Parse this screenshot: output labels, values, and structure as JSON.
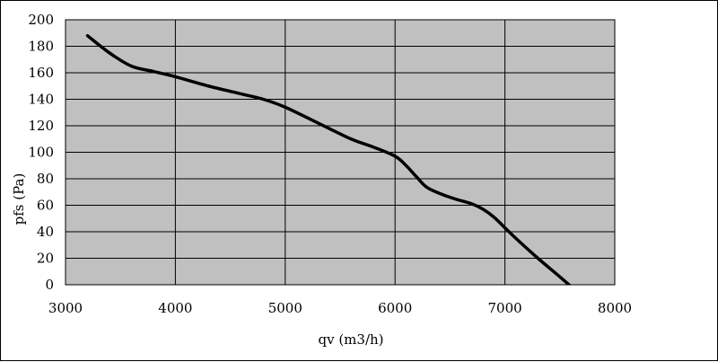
{
  "chart_data": {
    "type": "line",
    "xlabel": "qv (m3/h)",
    "ylabel": "pfs (Pa)",
    "xlim": [
      3000,
      8000
    ],
    "ylim": [
      0,
      200
    ],
    "x_ticks": [
      3000,
      4000,
      5000,
      6000,
      7000,
      8000
    ],
    "y_ticks": [
      0,
      20,
      40,
      60,
      80,
      100,
      120,
      140,
      160,
      180,
      200
    ],
    "grid": true,
    "plot_background": "#c0c0c0",
    "line_color": "#000000",
    "series": [
      {
        "x": [
          3200,
          3400,
          3600,
          3800,
          4000,
          4300,
          4600,
          4800,
          5000,
          5300,
          5600,
          5800,
          6000,
          6100,
          6200,
          6300,
          6500,
          6700,
          6800,
          6900,
          7000,
          7100,
          7300,
          7500,
          7680
        ],
        "y": [
          188,
          175,
          165,
          161,
          157,
          150,
          144,
          140,
          134,
          122,
          110,
          104,
          97,
          90,
          81,
          73,
          66,
          61,
          57,
          51,
          43,
          35,
          20,
          6,
          -7
        ]
      }
    ]
  }
}
